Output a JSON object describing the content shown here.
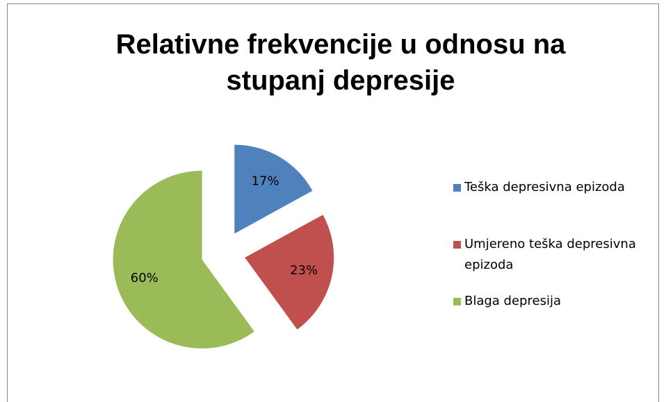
{
  "chart_data": {
    "type": "pie",
    "title": "Relativne frekvencije u odnosu na stupanj depresije",
    "categories": [
      "Teška depresivna epizoda",
      "Umjereno teška depresivna epizoda",
      "Blaga depresija"
    ],
    "values": [
      17,
      23,
      60
    ],
    "value_labels": [
      "17%",
      "23%",
      "60%"
    ],
    "colors": [
      "#4f81bd",
      "#c0504d",
      "#9bbb59"
    ],
    "legend": "right"
  }
}
